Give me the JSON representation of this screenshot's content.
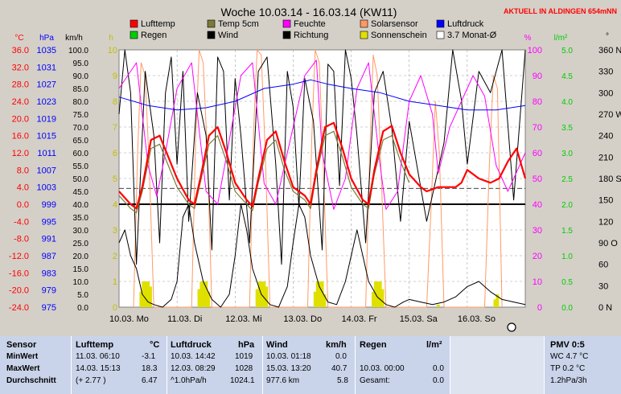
{
  "chart_data": {
    "type": "line",
    "title": "Woche 10.03.14 - 16.03.14 (KW11)",
    "notice": "AKTUELL IN ALDINGEN 654mNN",
    "grid": true,
    "axis_units": {
      "temp": "°C",
      "pressure": "hPa",
      "wind_speed": "km/h",
      "sun_hours": "h",
      "humidity": "%",
      "rain": "l/m²",
      "direction": "°"
    },
    "axes": {
      "temp": {
        "color": "#ff0000",
        "ticks": [
          "36.0",
          "32.0",
          "28.0",
          "24.0",
          "20.0",
          "16.0",
          "12.0",
          "8.0",
          "4.0",
          "0.0",
          "-4.0",
          "-8.0",
          "-12.0",
          "-16.0",
          "-20.0",
          "-24.0"
        ],
        "min": -24,
        "max": 36
      },
      "pressure": {
        "color": "#0000ff",
        "ticks": [
          "1035",
          "1031",
          "1027",
          "1023",
          "1019",
          "1015",
          "1011",
          "1007",
          "1003",
          "999",
          "995",
          "991",
          "987",
          "983",
          "979",
          "975"
        ],
        "min": 975,
        "max": 1035
      },
      "wind_speed": {
        "color": "#000000",
        "ticks": [
          "100.0",
          "95.0",
          "90.0",
          "85.0",
          "80.0",
          "75.0",
          "70.0",
          "65.0",
          "60.0",
          "55.0",
          "50.0",
          "45.0",
          "40.0",
          "35.0",
          "30.0",
          "25.0",
          "20.0",
          "15.0",
          "10.0",
          "5.0",
          "0.0"
        ],
        "min": 0,
        "max": 100
      },
      "sun_hours": {
        "color": "#bfbf00",
        "ticks": [
          "10",
          "9",
          "8",
          "7",
          "6",
          "5",
          "4",
          "3",
          "2",
          "1",
          "0"
        ],
        "min": 0,
        "max": 10
      },
      "humidity": {
        "color": "#ff00ff",
        "ticks": [
          "100",
          "90",
          "80",
          "70",
          "60",
          "50",
          "40",
          "30",
          "20",
          "10",
          "0"
        ],
        "min": 0,
        "max": 100
      },
      "rain": {
        "color": "#00cc00",
        "ticks": [
          "5.0",
          "4.5",
          "4.0",
          "3.5",
          "3.0",
          "2.5",
          "2.0",
          "1.5",
          "1.0",
          "0.5",
          "0.0"
        ],
        "min": 0,
        "max": 5
      },
      "direction": {
        "color": "#000000",
        "ticks": [
          "360 N",
          "330",
          "300",
          "270 W",
          "240",
          "210",
          "180 S",
          "150",
          "120",
          "90 O",
          "60",
          "30",
          "0 N"
        ],
        "min": 0,
        "max": 360
      }
    },
    "x_labels": [
      "10.03. Mo",
      "11.03. Di",
      "12.03. Mi",
      "13.03. Do",
      "14.03. Fr",
      "15.03. Sa",
      "16.03. So"
    ],
    "legend": [
      {
        "name": "Lufttemp",
        "color": "#ff0000"
      },
      {
        "name": "Temp 5cm",
        "color": "#7a7a3a"
      },
      {
        "name": "Feuchte",
        "color": "#ff00ff"
      },
      {
        "name": "Solarsensor",
        "color": "#ff9966"
      },
      {
        "name": "Luftdruck",
        "color": "#0000ff"
      },
      {
        "name": "Regen",
        "color": "#00cc00"
      },
      {
        "name": "Wind",
        "color": "#000000"
      },
      {
        "name": "Richtung",
        "color": "#000000"
      },
      {
        "name": "Sonnenschein",
        "color": "#e0e000"
      },
      {
        "name": "3.7 Monat-Ø",
        "color": "#ffffff"
      }
    ],
    "series": [
      {
        "name": "Lufttemp",
        "axis": "temp",
        "color": "#ff0000",
        "width": 2.2,
        "x": [
          0,
          0.2,
          0.3,
          0.4,
          0.55,
          0.7,
          0.85,
          1.0,
          1.2,
          1.3,
          1.4,
          1.55,
          1.7,
          1.85,
          2.0,
          2.2,
          2.3,
          2.4,
          2.55,
          2.7,
          2.85,
          3.0,
          3.2,
          3.3,
          3.4,
          3.55,
          3.7,
          3.85,
          4.0,
          4.2,
          4.3,
          4.4,
          4.55,
          4.7,
          4.85,
          5.0,
          5.2,
          5.3,
          5.5,
          5.7,
          5.8,
          5.9,
          6.0,
          6.2,
          6.4,
          6.55,
          6.7,
          6.85,
          7.0
        ],
        "values": [
          3,
          0,
          -1,
          4,
          15,
          16,
          11,
          6,
          1,
          0,
          6,
          16,
          18,
          12,
          5,
          1,
          -0.5,
          6,
          15,
          17,
          10,
          4,
          2,
          0,
          8,
          18,
          19,
          13,
          6,
          1,
          0,
          8,
          17,
          18.3,
          12,
          7,
          4,
          3,
          4,
          4,
          4,
          5,
          8,
          6,
          5,
          6,
          10,
          13,
          6
        ]
      },
      {
        "name": "Temp 5cm",
        "axis": "temp",
        "color": "#7a7a3a",
        "width": 1.2,
        "x": [
          0,
          0.2,
          0.3,
          0.4,
          0.55,
          0.7,
          0.85,
          1.0,
          1.2,
          1.3,
          1.4,
          1.55,
          1.7,
          1.85,
          2.0,
          2.2,
          2.3,
          2.4,
          2.55,
          2.7,
          2.85,
          3.0,
          3.2,
          3.3,
          3.4,
          3.55,
          3.7,
          3.85,
          4.0,
          4.2,
          4.3,
          4.4,
          4.55,
          4.7,
          4.85,
          5.0
        ],
        "values": [
          2,
          -1,
          -2,
          3,
          13,
          14,
          9,
          4,
          0,
          -1,
          5,
          14,
          16,
          10,
          3,
          0,
          -1.5,
          5,
          13,
          15,
          8,
          3,
          1,
          -1,
          7,
          16,
          17,
          11,
          4,
          0,
          -1,
          7,
          15,
          16,
          10,
          5
        ]
      },
      {
        "name": "Feuchte",
        "axis": "humidity",
        "color": "#ff00ff",
        "width": 1,
        "x": [
          0,
          0.3,
          0.5,
          0.65,
          0.8,
          1.0,
          1.25,
          1.5,
          1.7,
          1.9,
          2.1,
          2.3,
          2.5,
          2.7,
          2.9,
          3.2,
          3.4,
          3.5,
          3.7,
          3.9,
          4.1,
          4.3,
          4.5,
          4.6,
          4.8,
          5.0,
          5.2,
          5.4,
          5.5,
          5.7,
          5.9,
          6.1,
          6.3,
          6.5,
          6.7,
          6.9,
          7.0
        ],
        "values": [
          85,
          95,
          55,
          43,
          60,
          85,
          95,
          45,
          40,
          65,
          90,
          95,
          48,
          40,
          60,
          90,
          96,
          60,
          38,
          50,
          85,
          95,
          55,
          38,
          45,
          80,
          90,
          75,
          52,
          70,
          80,
          90,
          82,
          55,
          45,
          55,
          60
        ]
      },
      {
        "name": "Luftdruck",
        "axis": "pressure",
        "color": "#0000ff",
        "width": 1,
        "x": [
          0,
          0.5,
          1.0,
          1.5,
          2.0,
          2.5,
          3.0,
          3.3,
          3.6,
          4.0,
          4.5,
          5.0,
          5.5,
          6.0,
          6.5,
          7.0
        ],
        "values": [
          1024,
          1022,
          1021,
          1021.5,
          1023,
          1026,
          1027,
          1028,
          1027,
          1026,
          1025,
          1023,
          1022,
          1021,
          1021,
          1022
        ]
      },
      {
        "name": "Wind",
        "axis": "wind_speed",
        "color": "#000000",
        "width": 1,
        "x": [
          0,
          0.1,
          0.2,
          0.3,
          0.4,
          0.5,
          0.6,
          0.75,
          0.9,
          1.0,
          1.1,
          1.2,
          1.3,
          1.45,
          1.6,
          1.75,
          1.9,
          2.0,
          2.1,
          2.2,
          2.3,
          2.45,
          2.6,
          2.75,
          2.9,
          3.0,
          3.1,
          3.2,
          3.3,
          3.45,
          3.6,
          3.75,
          3.9,
          4.0,
          4.1,
          4.2,
          4.3,
          4.45,
          4.6,
          4.75,
          4.9,
          5.0,
          5.2,
          5.4,
          5.6,
          5.8,
          6.0,
          6.2,
          6.4,
          6.6,
          6.8,
          7.0
        ],
        "values": [
          25,
          30,
          20,
          15,
          5,
          2,
          1,
          0,
          3,
          10,
          35,
          40,
          25,
          10,
          3,
          0,
          5,
          20,
          40,
          30,
          15,
          5,
          1,
          0,
          8,
          25,
          40,
          35,
          20,
          8,
          2,
          1,
          10,
          20,
          30,
          20,
          10,
          4,
          1,
          0,
          2,
          3,
          2,
          1,
          2,
          4,
          8,
          10,
          6,
          3,
          2,
          1
        ]
      },
      {
        "name": "Richtung",
        "axis": "direction",
        "color": "#000000",
        "width": 1,
        "x": [
          0,
          0.1,
          0.2,
          0.3,
          0.45,
          0.6,
          0.7,
          0.8,
          0.9,
          1.0,
          1.1,
          1.2,
          1.35,
          1.5,
          1.6,
          1.7,
          1.8,
          1.9,
          2.0,
          2.1,
          2.25,
          2.4,
          2.55,
          2.7,
          2.8,
          2.9,
          3.0,
          3.1,
          3.2,
          3.35,
          3.5,
          3.6,
          3.7,
          3.8,
          3.9,
          4.0,
          4.1,
          4.25,
          4.4,
          4.55,
          4.7,
          4.85,
          5.0,
          5.3,
          5.6,
          5.75,
          5.9,
          6.0,
          6.2,
          6.4,
          6.6,
          6.8,
          7.0
        ],
        "values": [
          270,
          360,
          300,
          60,
          330,
          240,
          90,
          300,
          350,
          200,
          330,
          120,
          300,
          240,
          80,
          350,
          330,
          150,
          320,
          240,
          90,
          330,
          350,
          200,
          60,
          330,
          280,
          140,
          320,
          260,
          80,
          340,
          330,
          170,
          360,
          320,
          240,
          90,
          300,
          330,
          250,
          120,
          260,
          120,
          230,
          360,
          290,
          200,
          330,
          300,
          360,
          150,
          360
        ]
      },
      {
        "name": "Solarsensor",
        "axis": "humidity",
        "color": "#ff9966",
        "width": 1,
        "x": [
          0.25,
          0.32,
          0.38,
          0.45,
          0.52,
          0.6,
          1.25,
          1.32,
          1.38,
          1.45,
          1.52,
          1.6,
          2.25,
          2.32,
          2.38,
          2.45,
          2.52,
          2.6,
          3.25,
          3.32,
          3.38,
          3.45,
          3.52,
          3.6,
          4.25,
          4.32,
          4.38,
          4.45,
          4.52,
          4.6,
          5.3,
          5.38,
          5.45,
          5.52,
          5.6,
          6.3,
          6.38,
          6.45,
          6.52,
          6.6
        ],
        "values": [
          0,
          60,
          95,
          90,
          55,
          0,
          0,
          65,
          100,
          95,
          60,
          0,
          0,
          70,
          100,
          98,
          60,
          0,
          0,
          65,
          100,
          95,
          55,
          0,
          0,
          60,
          98,
          90,
          50,
          0,
          0,
          40,
          80,
          60,
          0,
          0,
          55,
          90,
          85,
          0
        ]
      }
    ],
    "sunshine_bars": {
      "axis": "sun_hours",
      "color": "#e0e000",
      "x": [
        0.38,
        0.42,
        0.46,
        0.5,
        0.54,
        1.38,
        1.42,
        1.46,
        1.5,
        1.54,
        2.38,
        2.42,
        2.46,
        2.5,
        2.54,
        3.38,
        3.42,
        3.46,
        3.5,
        3.54,
        4.38,
        4.42,
        4.46,
        4.5,
        4.54,
        5.5,
        6.48,
        6.52
      ],
      "values": [
        0.6,
        1.0,
        1.0,
        1.0,
        0.8,
        0.7,
        1.0,
        1.0,
        1.0,
        0.6,
        0.7,
        1.0,
        1.0,
        1.0,
        0.8,
        0.6,
        1.0,
        1.0,
        1.0,
        0.5,
        0.6,
        1.0,
        1.0,
        1.0,
        0.7,
        0.1,
        0.3,
        0.5
      ]
    },
    "reference_line": {
      "axis": "temp",
      "value": 0,
      "color": "#000000"
    },
    "month_avg_line": {
      "axis": "temp",
      "value": 3.7,
      "color": "#000000"
    }
  },
  "table": {
    "headers": {
      "sensor": "Sensor",
      "lufttemp": "Lufttemp",
      "lufttemp_unit": "°C",
      "luftdruck": "Luftdruck",
      "luftdruck_unit": "hPa",
      "wind": "Wind",
      "wind_unit": "km/h",
      "regen": "Regen",
      "regen_unit": "l/m²",
      "pmv": "PMV 0:5"
    },
    "rows": [
      {
        "label": "MinWert",
        "t_time": "11.03.  06:10",
        "t_val": "-3.1",
        "p_time": "10.03.  14:42",
        "p_val": "1019",
        "w_time": "10.03.  01:18",
        "w_val": "0.0",
        "r_time": "10.03.  00:00",
        "r_val": "0.0",
        "pmv": "WC 4.7 °C"
      },
      {
        "label": "MaxWert",
        "t_time": "14.03.  15:13",
        "t_val": "18.3",
        "p_time": "12.03.  08:29",
        "p_val": "1028",
        "w_time": "15.03.  13:20",
        "w_val": "40.7",
        "r_time": "",
        "r_val": "",
        "pmv": "TP 0.2 °C"
      },
      {
        "label": "Durchschnitt",
        "t_time": "(+ 2.77 )",
        "t_val": "6.47",
        "p_time": "^1.0hPa/h",
        "p_val": "1024.1",
        "w_time": "977.6 km",
        "w_val": "5.8",
        "r_time": "Gesamt:",
        "r_val": "0.0",
        "pmv": "1.2hPa/3h"
      }
    ]
  }
}
